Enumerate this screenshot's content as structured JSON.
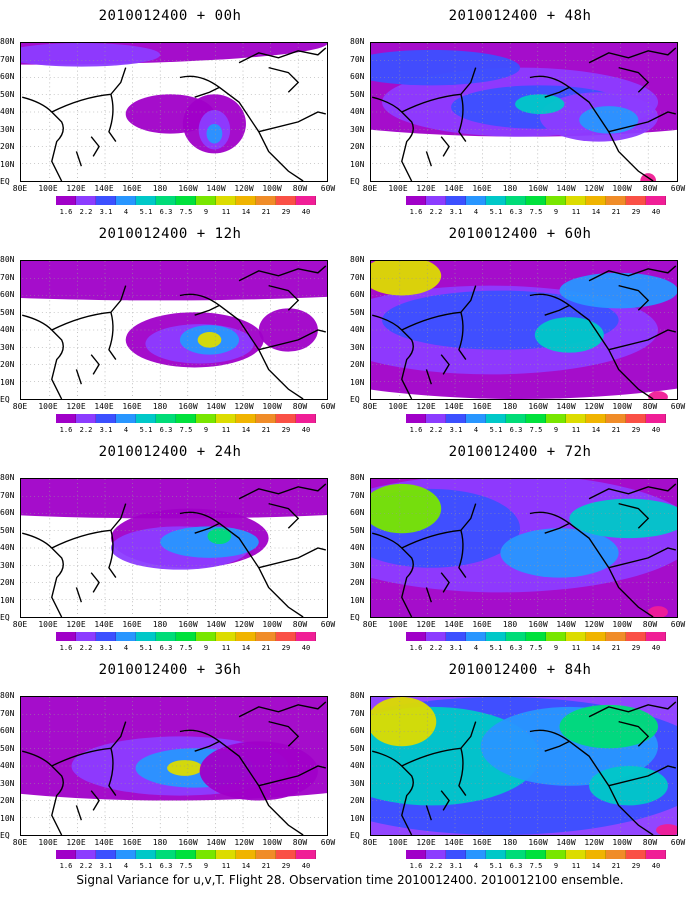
{
  "caption": "Signal Variance for u,v,T. Flight 28. Observation time 2010012400. 2010012100 ensemble.",
  "lat_labels": [
    "80N",
    "70N",
    "60N",
    "50N",
    "40N",
    "30N",
    "20N",
    "10N",
    "EQ"
  ],
  "lon_labels": [
    "80E",
    "100E",
    "120E",
    "140E",
    "160E",
    "180",
    "160W",
    "140W",
    "120W",
    "100W",
    "80W",
    "60W"
  ],
  "colorbar": {
    "labels": [
      "1.6",
      "2.2",
      "3.1",
      "4",
      "5.1",
      "6.3",
      "7.5",
      "9",
      "11",
      "14",
      "21",
      "29",
      "40"
    ],
    "colors": [
      "#a000c8",
      "#8c3cff",
      "#3c50ff",
      "#2896ff",
      "#00c8c8",
      "#00dc78",
      "#00e13c",
      "#78e600",
      "#dcdc00",
      "#f0b400",
      "#f08c28",
      "#fa5046",
      "#f01e96"
    ]
  },
  "panels": [
    {
      "title": "2010012400 + 00h",
      "forecast_hour": 0
    },
    {
      "title": "2010012400 + 48h",
      "forecast_hour": 48
    },
    {
      "title": "2010012400 + 12h",
      "forecast_hour": 12
    },
    {
      "title": "2010012400 + 60h",
      "forecast_hour": 60
    },
    {
      "title": "2010012400 + 24h",
      "forecast_hour": 24
    },
    {
      "title": "2010012400 + 72h",
      "forecast_hour": 72
    },
    {
      "title": "2010012400 + 36h",
      "forecast_hour": 36
    },
    {
      "title": "2010012400 + 84h",
      "forecast_hour": 84
    }
  ]
}
